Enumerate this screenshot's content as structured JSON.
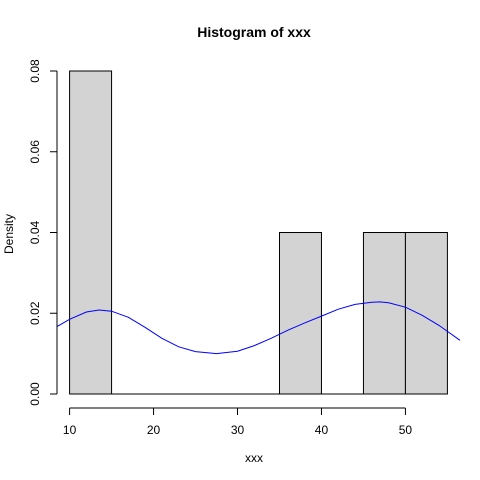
{
  "chart_data": {
    "type": "bar",
    "title": "Histogram of xxx",
    "xlabel": "xxx",
    "ylabel": "Density",
    "xlim": [
      8.5,
      56.5
    ],
    "ylim": [
      0,
      0.08
    ],
    "x_ticks": [
      10,
      20,
      30,
      40,
      50
    ],
    "y_ticks": [
      0.0,
      0.02,
      0.04,
      0.06,
      0.08
    ],
    "y_tick_labels": [
      "0.00",
      "0.02",
      "0.04",
      "0.06",
      "0.08"
    ],
    "bins": [
      {
        "from": 10,
        "to": 15,
        "density": 0.08
      },
      {
        "from": 15,
        "to": 20,
        "density": 0.0
      },
      {
        "from": 20,
        "to": 25,
        "density": 0.0
      },
      {
        "from": 25,
        "to": 30,
        "density": 0.0
      },
      {
        "from": 30,
        "to": 35,
        "density": 0.0
      },
      {
        "from": 35,
        "to": 40,
        "density": 0.04
      },
      {
        "from": 40,
        "to": 45,
        "density": 0.0
      },
      {
        "from": 45,
        "to": 50,
        "density": 0.04
      },
      {
        "from": 50,
        "to": 55,
        "density": 0.04
      }
    ],
    "density_curve": {
      "color": "#0000ff",
      "x": [
        8.5,
        10,
        12,
        13.5,
        15,
        17,
        19,
        21,
        23,
        25,
        27.5,
        30,
        32,
        34,
        36,
        38,
        40,
        42,
        44,
        46,
        47,
        48,
        50,
        52,
        54,
        56.5
      ],
      "y": [
        0.0167,
        0.0185,
        0.0203,
        0.0208,
        0.0205,
        0.019,
        0.0165,
        0.0138,
        0.0117,
        0.0105,
        0.01,
        0.0106,
        0.012,
        0.0138,
        0.0158,
        0.0176,
        0.0193,
        0.021,
        0.0222,
        0.0227,
        0.0228,
        0.0226,
        0.0215,
        0.0195,
        0.017,
        0.0133
      ]
    },
    "bar_fill": "#d3d3d3",
    "grid": false
  }
}
